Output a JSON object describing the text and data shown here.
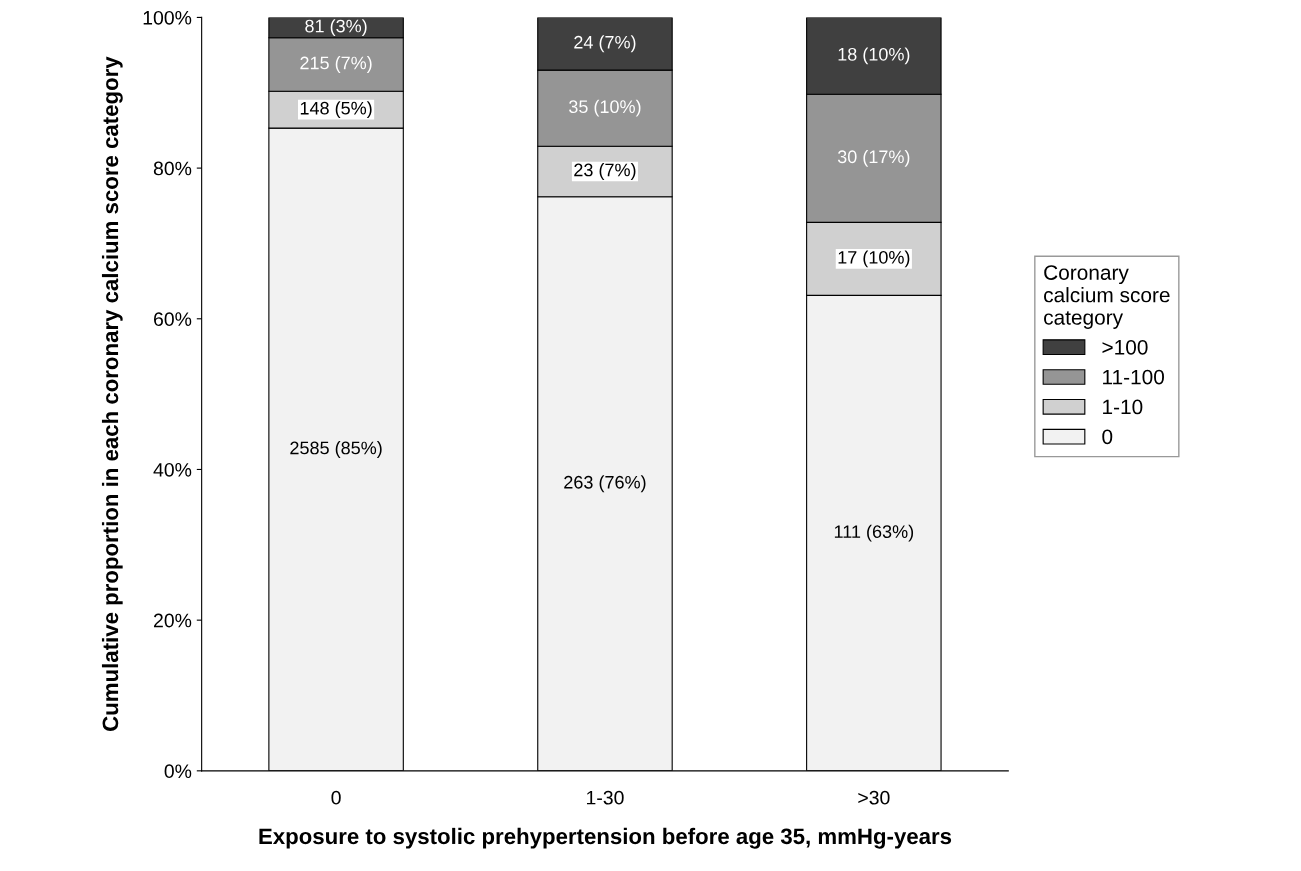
{
  "chart_data": {
    "type": "bar",
    "stacked": true,
    "xlabel": "Exposure to systolic prehypertension before age 35, mmHg-years",
    "ylabel": "Cumulative proportion in each coronary calcium score category",
    "legend_title": "Coronary\ncalcium score\ncategory",
    "categories": [
      "0",
      "1-30",
      ">30"
    ],
    "series": [
      {
        "name": "0",
        "color": "#f2f2f2",
        "values": [
          85.3,
          76.2,
          63.1
        ],
        "value_labels": [
          "2585 (85%)",
          "263 (76%)",
          "111 (63%)"
        ]
      },
      {
        "name": "1-10",
        "color": "#d0d0d0",
        "values": [
          4.9,
          6.7,
          9.7
        ],
        "value_labels": [
          "148 (5%)",
          "23 (7%)",
          "17 (10%)"
        ]
      },
      {
        "name": "11-100",
        "color": "#959595",
        "values": [
          7.1,
          10.1,
          17.0
        ],
        "value_labels": [
          "215 (7%)",
          "35 (10%)",
          "30 (17%)"
        ]
      },
      {
        "name": ">100",
        "color": "#404040",
        "values": [
          2.7,
          7.0,
          10.2
        ],
        "value_labels": [
          "81 (3%)",
          "24 (7%)",
          "18 (10%)"
        ]
      }
    ],
    "ylim": [
      0,
      100
    ],
    "yticks": [
      {
        "value": 0,
        "label": "0%"
      },
      {
        "value": 20,
        "label": "20%"
      },
      {
        "value": 40,
        "label": "40%"
      },
      {
        "value": 60,
        "label": "60%"
      },
      {
        "value": 80,
        "label": "80%"
      },
      {
        "value": 100,
        "label": "100%"
      }
    ],
    "grid": false,
    "legend": "right"
  }
}
